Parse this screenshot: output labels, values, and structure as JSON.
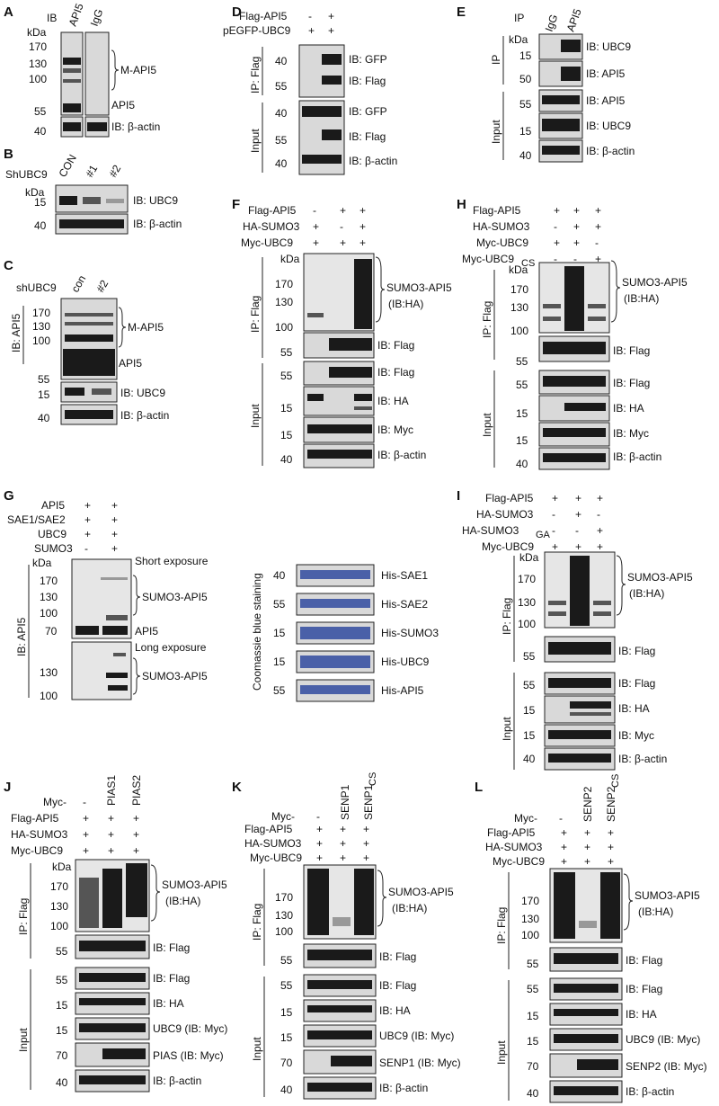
{
  "A": {
    "panel": "A",
    "ib": "IB",
    "kda": "kDa",
    "lanes": [
      "API5",
      "IgG"
    ],
    "mw": [
      "170",
      "130",
      "100",
      "55",
      "40"
    ],
    "labels": [
      "M-API5",
      "API5",
      "IB: β-actin"
    ]
  },
  "B": {
    "panel": "B",
    "sh": "ShUBC9",
    "kda": "kDa",
    "lanes": [
      "CON",
      "#1",
      "#2"
    ],
    "mw": [
      "15",
      "40"
    ],
    "labels": [
      "IB: UBC9",
      "IB: β-actin"
    ]
  },
  "C": {
    "panel": "C",
    "sh": "shUBC9",
    "kda": "kDa",
    "lanes": [
      "con",
      "#2"
    ],
    "mw": [
      "170",
      "130",
      "100",
      "55",
      "15",
      "40"
    ],
    "side": "IB: API5",
    "labels": [
      "M-API5",
      "API5",
      "IB: UBC9",
      "IB: β-actin"
    ]
  },
  "D": {
    "panel": "D",
    "rows": [
      "Flag-API5",
      "pEGFP-UBC9"
    ],
    "signs": [
      [
        "-",
        "+"
      ],
      [
        "+",
        "+"
      ]
    ],
    "ip": "IP: Flag",
    "input": "Input",
    "mw": [
      "40",
      "55",
      "40",
      "55",
      "40"
    ],
    "labels": [
      "IB: GFP",
      "IB: Flag",
      "IB: GFP",
      "IB: Flag",
      "IB: β-actin"
    ]
  },
  "E": {
    "panel": "E",
    "ip_head": "IP",
    "kda": "kDa",
    "lanes": [
      "IgG",
      "API5"
    ],
    "ip": "IP",
    "input": "Input",
    "mw": [
      "15",
      "50",
      "55",
      "15",
      "40"
    ],
    "labels": [
      "IB: UBC9",
      "IB: API5",
      "IB: API5",
      "IB: UBC9",
      "IB: β-actin"
    ]
  },
  "F": {
    "panel": "F",
    "rows": [
      "Flag-API5",
      "HA-SUMO3",
      "Myc-UBC9"
    ],
    "signs": [
      [
        "-",
        "+",
        "+"
      ],
      [
        "+",
        "-",
        "+"
      ],
      [
        "+",
        "+",
        "+"
      ]
    ],
    "kda": "kDa",
    "ip": "IP: Flag",
    "input": "Input",
    "mw": [
      "170",
      "130",
      "100",
      "55",
      "55",
      "15",
      "15",
      "40"
    ],
    "labels": [
      "SUMO3-API5",
      "(IB:HA)",
      "IB: Flag",
      "IB: Flag",
      "IB: HA",
      "IB: Myc",
      "IB: β-actin"
    ]
  },
  "H": {
    "panel": "H",
    "rows": [
      "Flag-API5",
      "HA-SUMO3",
      "Myc-UBC9",
      "Myc-UBC9"
    ],
    "sub": "CS",
    "signs": [
      [
        "+",
        "+",
        "+"
      ],
      [
        "-",
        "+",
        "+"
      ],
      [
        "+",
        "+",
        "-"
      ],
      [
        "-",
        "-",
        "+"
      ]
    ],
    "kda": "kDa",
    "ip": "IP: Flag",
    "input": "Input",
    "mw": [
      "170",
      "130",
      "100",
      "55",
      "55",
      "15",
      "15",
      "40"
    ],
    "labels": [
      "SUMO3-API5",
      "(IB:HA)",
      "IB: Flag",
      "IB: Flag",
      "IB: HA",
      "IB: Myc",
      "IB: β-actin"
    ]
  },
  "G": {
    "panel": "G",
    "rows": [
      "API5",
      "SAE1/SAE2",
      "UBC9",
      "SUMO3"
    ],
    "signs": [
      [
        "+",
        "+"
      ],
      [
        "+",
        "+"
      ],
      [
        "+",
        "+"
      ],
      [
        "-",
        "+"
      ]
    ],
    "kda": "kDa",
    "side": "IB: API5",
    "mw": [
      "170",
      "130",
      "100",
      "70",
      "130",
      "100"
    ],
    "labels": [
      "Short exposure",
      "SUMO3-API5",
      "API5",
      "Long exposure",
      "SUMO3-API5"
    ],
    "coom": "Coomassie blue staining",
    "coom_mw": [
      "40",
      "55",
      "15",
      "15",
      "55"
    ],
    "coom_labels": [
      "His-SAE1",
      "His-SAE2",
      "His-SUMO3",
      "His-UBC9",
      "His-API5"
    ]
  },
  "I": {
    "panel": "I",
    "rows": [
      "Flag-API5",
      "HA-SUMO3",
      "HA-SUMO3",
      "Myc-UBC9"
    ],
    "sub": "GA",
    "signs": [
      [
        "+",
        "+",
        "+"
      ],
      [
        "-",
        "+",
        "-"
      ],
      [
        "-",
        "-",
        "+"
      ],
      [
        "+",
        "+",
        "+"
      ]
    ],
    "kda": "kDa",
    "ip": "IP: Flag",
    "input": "Input",
    "mw": [
      "170",
      "130",
      "100",
      "55",
      "55",
      "15",
      "15",
      "40"
    ],
    "labels": [
      "SUMO3-API5",
      "(IB:HA)",
      "IB: Flag",
      "IB: Flag",
      "IB: HA",
      "IB: Myc",
      "IB: β-actin"
    ]
  },
  "J": {
    "panel": "J",
    "myc": "Myc-",
    "lanes": [
      "-",
      "PIAS1",
      "PIAS2"
    ],
    "rows": [
      "Flag-API5",
      "HA-SUMO3",
      "Myc-UBC9"
    ],
    "signs": [
      [
        "+",
        "+",
        "+"
      ],
      [
        "+",
        "+",
        "+"
      ],
      [
        "+",
        "+",
        "+"
      ]
    ],
    "kda": "kDa",
    "ip": "IP: Flag",
    "input": "Input",
    "mw": [
      "170",
      "130",
      "100",
      "55",
      "55",
      "15",
      "15",
      "70",
      "40"
    ],
    "labels": [
      "SUMO3-API5",
      "(IB:HA)",
      "IB: Flag",
      "IB: Flag",
      "IB: HA",
      "UBC9 (IB: Myc)",
      "PIAS (IB: Myc)",
      "IB: β-actin"
    ]
  },
  "K": {
    "panel": "K",
    "myc": "Myc-",
    "lanes": [
      "-",
      "SENP1",
      "SENP1"
    ],
    "sub": "CS",
    "rows": [
      "Flag-API5",
      "HA-SUMO3",
      "Myc-UBC9"
    ],
    "signs": [
      [
        "+",
        "+",
        "+"
      ],
      [
        "+",
        "+",
        "+"
      ],
      [
        "+",
        "+",
        "+"
      ]
    ],
    "kda": "kDa",
    "ip": "IP: Flag",
    "input": "Input",
    "mw": [
      "170",
      "130",
      "100",
      "55",
      "55",
      "15",
      "15",
      "70",
      "40"
    ],
    "labels": [
      "SUMO3-API5",
      "(IB:HA)",
      "IB: Flag",
      "IB: Flag",
      "IB: HA",
      "UBC9 (IB: Myc)",
      "SENP1 (IB: Myc)",
      "IB: β-actin"
    ]
  },
  "L": {
    "panel": "L",
    "myc": "Myc-",
    "lanes": [
      "-",
      "SENP2",
      "SENP2"
    ],
    "sub": "CS",
    "rows": [
      "Flag-API5",
      "HA-SUMO3",
      "Myc-UBC9"
    ],
    "signs": [
      [
        "+",
        "+",
        "+"
      ],
      [
        "+",
        "+",
        "+"
      ],
      [
        "+",
        "+",
        "+"
      ]
    ],
    "kda": "kDa",
    "ip": "IP: Flag",
    "input": "Input",
    "mw": [
      "170",
      "130",
      "100",
      "55",
      "55",
      "15",
      "15",
      "70",
      "40"
    ],
    "labels": [
      "SUMO3-API5",
      "(IB:HA)",
      "IB: Flag",
      "IB: Flag",
      "IB: HA",
      "UBC9 (IB: Myc)",
      "SENP2 (IB: Myc)",
      "IB: β-actin"
    ]
  }
}
